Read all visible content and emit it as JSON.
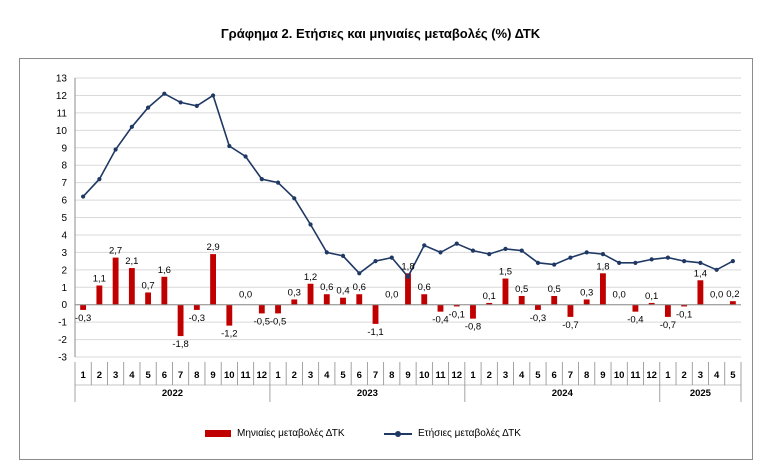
{
  "title": "Γράφημα 2. Ετήσιες και μηνιαίες μεταβολές (%) ΔΤΚ",
  "chart_data": {
    "type": "bar+line",
    "ylim": [
      -3,
      13
    ],
    "yticks": [
      -3,
      -2,
      -1,
      0,
      1,
      2,
      3,
      4,
      5,
      6,
      7,
      8,
      9,
      10,
      11,
      12,
      13
    ],
    "grid": true,
    "legend_position": "bottom",
    "months": [
      "1",
      "2",
      "3",
      "4",
      "5",
      "6",
      "7",
      "8",
      "9",
      "10",
      "11",
      "12",
      "1",
      "2",
      "3",
      "4",
      "5",
      "6",
      "7",
      "8",
      "9",
      "10",
      "11",
      "12",
      "1",
      "2",
      "3",
      "4",
      "5",
      "6",
      "7",
      "8",
      "9",
      "10",
      "11",
      "12",
      "1",
      "2",
      "3",
      "4",
      "5"
    ],
    "years": [
      {
        "label": "2022",
        "count": 12
      },
      {
        "label": "2023",
        "count": 12
      },
      {
        "label": "2024",
        "count": 12
      },
      {
        "label": "2025",
        "count": 5
      }
    ],
    "series": [
      {
        "name": "Μηνιαίες μεταβολές ΔΤΚ",
        "kind": "bar",
        "color": "#c00000",
        "values": [
          -0.3,
          1.1,
          2.7,
          2.1,
          0.7,
          1.6,
          -1.8,
          -0.3,
          2.9,
          -1.2,
          0.0,
          -0.5,
          -0.5,
          0.3,
          1.2,
          0.6,
          0.4,
          0.6,
          -1.1,
          0.0,
          1.8,
          0.6,
          -0.4,
          -0.1,
          -0.8,
          0.1,
          1.5,
          0.5,
          -0.3,
          0.5,
          -0.7,
          0.3,
          1.8,
          0.0,
          -0.4,
          0.1,
          -0.7,
          -0.1,
          1.4,
          0.0,
          0.2
        ],
        "labels": [
          "-0,3",
          "1,1",
          "2,7",
          "2,1",
          "0,7",
          "1,6",
          "-1,8",
          "-0,3",
          "2,9",
          "-1,2",
          "0,0",
          "-0,5",
          "-0,5",
          "0,3",
          "1,2",
          "0,6",
          "0,4",
          "0,6",
          "-1,1",
          "0,0",
          "1,8",
          "0,6",
          "-0,4",
          "-0,1",
          "-0,8",
          "0,1",
          "1,5",
          "0,5",
          "-0,3",
          "0,5",
          "-0,7",
          "0,3",
          "1,8",
          "0,0",
          "-0,4",
          "0,1",
          "-0,7",
          "-0,1",
          "1,4",
          "0,0",
          "0,2"
        ]
      },
      {
        "name": "Ετήσιες μεταβολές ΔΤΚ",
        "kind": "line",
        "color": "#1f3864",
        "values": [
          6.2,
          7.2,
          8.9,
          10.2,
          11.3,
          12.1,
          11.6,
          11.4,
          12.0,
          9.1,
          8.5,
          7.2,
          7.0,
          6.1,
          4.6,
          3.0,
          2.8,
          1.8,
          2.5,
          2.7,
          1.6,
          3.4,
          3.0,
          3.5,
          3.1,
          2.9,
          3.2,
          3.1,
          2.4,
          2.3,
          2.7,
          3.0,
          2.9,
          2.4,
          2.4,
          2.6,
          2.7,
          2.5,
          2.4,
          2.0,
          2.5
        ]
      }
    ]
  }
}
